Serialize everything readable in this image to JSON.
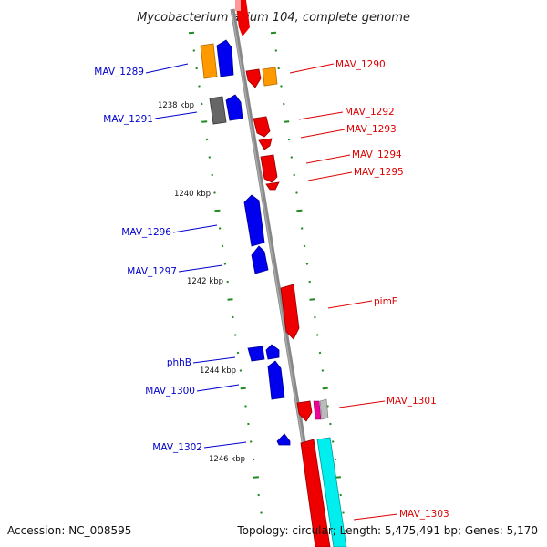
{
  "title": "Mycobacterium avium 104, complete genome",
  "accession": "Accession: NC_008595",
  "topology": "Topology: circular; Length: 5,475,491 bp; Genes: 5,170",
  "scale_labels": [
    "1238 kbp",
    "1240 kbp",
    "1242 kbp",
    "1244 kbp",
    "1246 kbp"
  ],
  "gene_labels": {
    "left": [
      "MAV_1289",
      "MAV_1291",
      "MAV_1296",
      "MAV_1297",
      "phhB",
      "MAV_1300",
      "MAV_1302"
    ],
    "right": [
      "MAV_1290",
      "MAV_1292",
      "MAV_1293",
      "MAV_1294",
      "MAV_1295",
      "pimE",
      "MAV_1301",
      "MAV_1303"
    ]
  },
  "colors": {
    "backbone": "#888888",
    "tick": "#228822",
    "forward_gene": "#0000ee",
    "reverse_gene": "#ee0000",
    "orange_gene": "#ff9900",
    "gray_gene": "#666666",
    "cyan_gene": "#00ffff",
    "magenta_gene": "#ee0099",
    "label_left": "#0000cc",
    "label_right": "#dd0000"
  }
}
